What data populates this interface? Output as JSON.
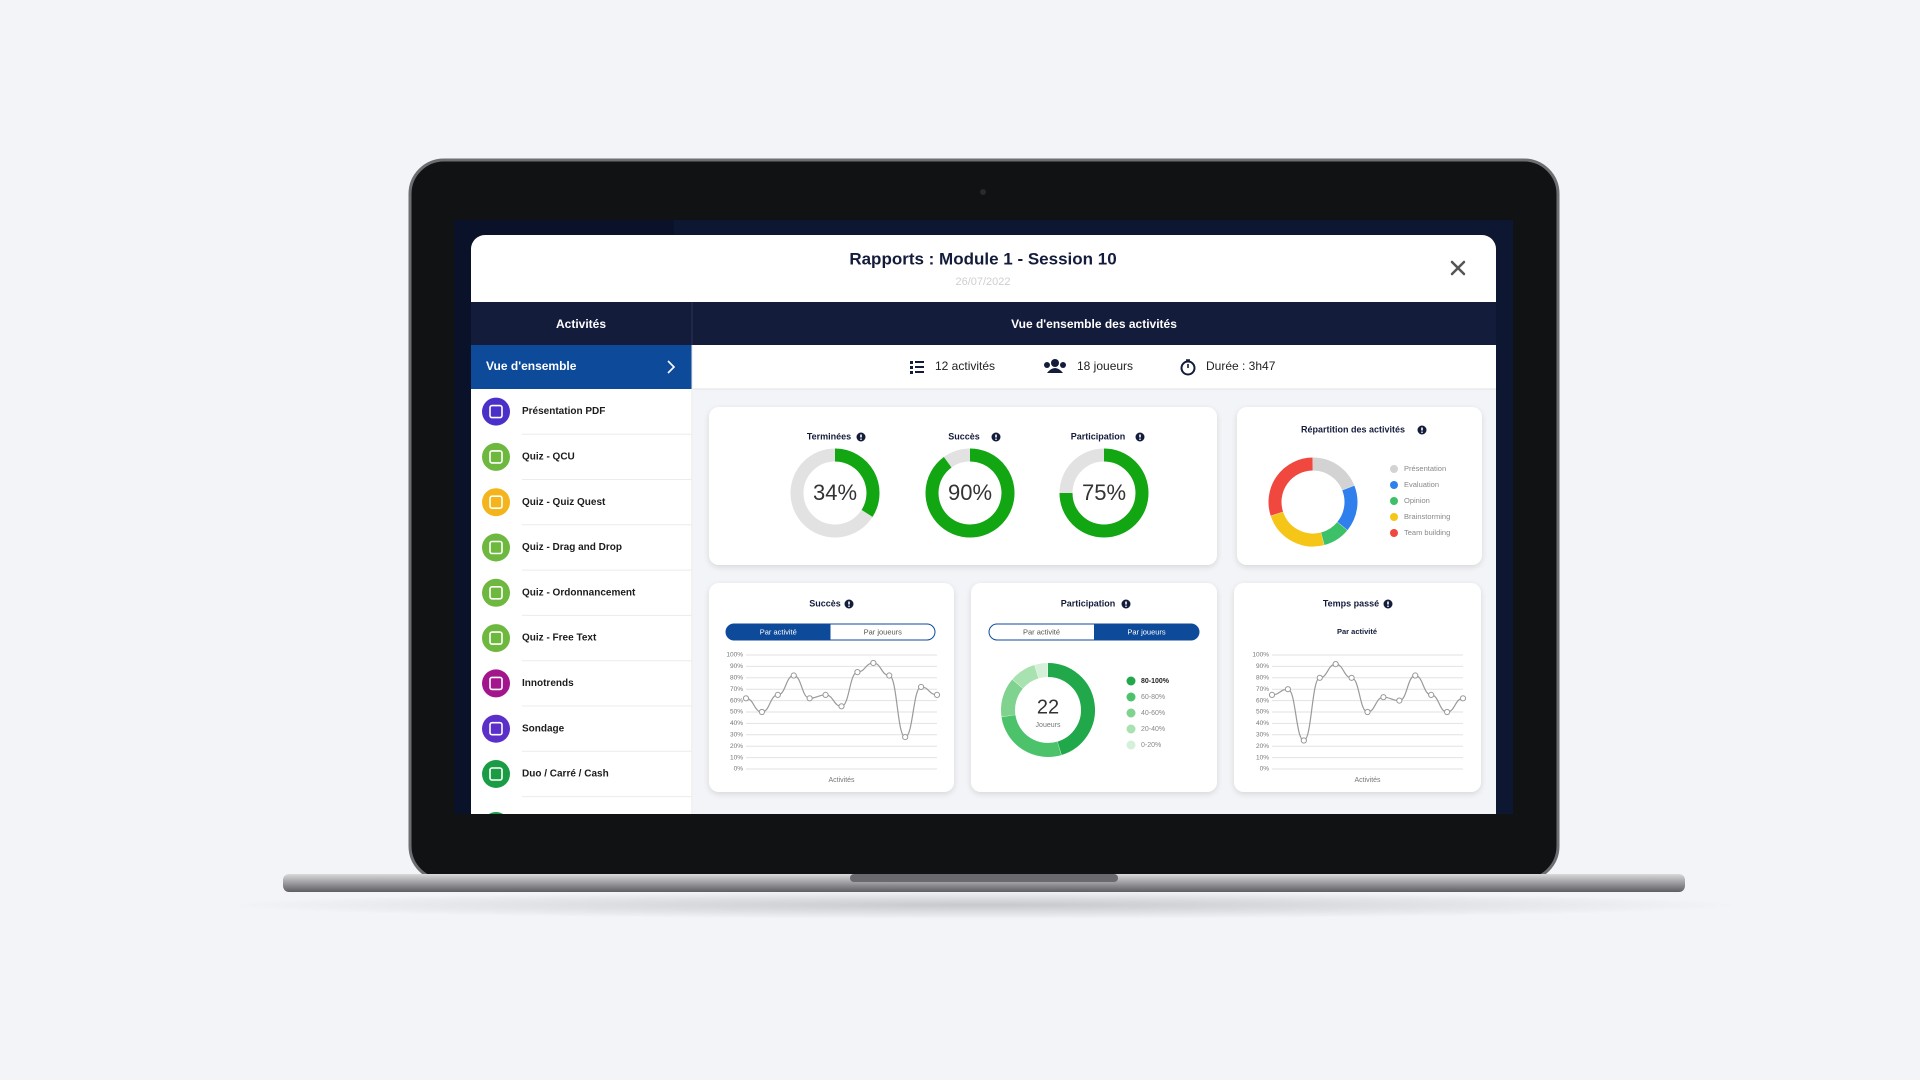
{
  "header": {
    "title": "Rapports : Module 1 - Session 10",
    "date": "26/07/2022"
  },
  "sidebar": {
    "title": "Activités",
    "selected": "Vue d'ensemble",
    "items": [
      {
        "label": "Présentation PDF",
        "color": "#4b2fc9"
      },
      {
        "label": "Quiz - QCU",
        "color": "#6fb83f"
      },
      {
        "label": "Quiz - Quiz Quest",
        "color": "#f3b51b"
      },
      {
        "label": "Quiz - Drag and Drop",
        "color": "#6fb83f"
      },
      {
        "label": "Quiz - Ordonnancement",
        "color": "#6fb83f"
      },
      {
        "label": "Quiz - Free Text",
        "color": "#6fb83f"
      },
      {
        "label": "Innotrends",
        "color": "#a3158c"
      },
      {
        "label": "Sondage",
        "color": "#5b2fc9"
      },
      {
        "label": "Duo / Carré / Cash",
        "color": "#1a9c45"
      }
    ]
  },
  "main": {
    "title": "Vue d'ensemble des activités",
    "stats": [
      "12 activités",
      "18 joueurs",
      "Durée : 3h47"
    ]
  },
  "gauges": [
    {
      "title": "Terminées",
      "value": 34,
      "value_label": "34%",
      "color": "#12a612"
    },
    {
      "title": "Succès",
      "value": 90,
      "value_label": "90%",
      "color": "#12a612"
    },
    {
      "title": "Participation",
      "value": 75,
      "value_label": "75%",
      "color": "#12a612"
    }
  ],
  "repartition": {
    "type": "pie",
    "title": "Répartition des activités",
    "categories": [
      "Présentation",
      "Evaluation",
      "Opinion",
      "Brainstorming",
      "Team building"
    ],
    "values": [
      19,
      17,
      10,
      24,
      30
    ],
    "colors": [
      "#d3d3d3",
      "#2f80ed",
      "#3cc068",
      "#f5c518",
      "#f0483e"
    ]
  },
  "succes": {
    "type": "line",
    "title": "Succès",
    "toggle": [
      "Par activité",
      "Par joueurs"
    ],
    "active": 0,
    "xlabel": "Activités",
    "color": "#9a9a9a",
    "values": [
      62,
      50,
      65,
      82,
      62,
      65,
      55,
      85,
      93,
      82,
      28,
      72,
      65
    ],
    "ylim": [
      0,
      100
    ],
    "yticks": [
      {
        "value": 0,
        "label": "0%"
      },
      {
        "value": 10,
        "label": "10%"
      },
      {
        "value": 20,
        "label": "20%"
      },
      {
        "value": 30,
        "label": "30%"
      },
      {
        "value": 40,
        "label": "40%"
      },
      {
        "value": 50,
        "label": "50%"
      },
      {
        "value": 60,
        "label": "60%"
      },
      {
        "value": 70,
        "label": "70%"
      },
      {
        "value": 80,
        "label": "80%"
      },
      {
        "value": 90,
        "label": "90%"
      },
      {
        "value": 100,
        "label": "100%"
      }
    ]
  },
  "participation": {
    "type": "pie",
    "title": "Participation",
    "toggle": [
      "Par activité",
      "Par joueurs"
    ],
    "active": 1,
    "center_value": 22,
    "center_label": "Joueurs",
    "categories": [
      "80-100%",
      "60-80%",
      "40-60%",
      "20-40%",
      "0-20%"
    ],
    "values": [
      10,
      6,
      3,
      2,
      1
    ],
    "colors": [
      "#21a84a",
      "#4cc26a",
      "#7fd38f",
      "#a9e2b1",
      "#d4f0d8"
    ]
  },
  "temps": {
    "type": "line",
    "title": "Temps passé",
    "subtitle": "Par activité",
    "xlabel": "Activités",
    "color": "#9a9a9a",
    "values": [
      65,
      70,
      25,
      80,
      92,
      80,
      50,
      63,
      60,
      82,
      65,
      50,
      62
    ],
    "ylim": [
      0,
      100
    ],
    "yticks": [
      {
        "value": 0,
        "label": "0%"
      },
      {
        "value": 10,
        "label": "10%"
      },
      {
        "value": 20,
        "label": "20%"
      },
      {
        "value": 30,
        "label": "30%"
      },
      {
        "value": 40,
        "label": "40%"
      },
      {
        "value": 50,
        "label": "50%"
      },
      {
        "value": 60,
        "label": "60%"
      },
      {
        "value": 70,
        "label": "70%"
      },
      {
        "value": 80,
        "label": "80%"
      },
      {
        "value": 90,
        "label": "90%"
      },
      {
        "value": 100,
        "label": "100%"
      }
    ]
  }
}
